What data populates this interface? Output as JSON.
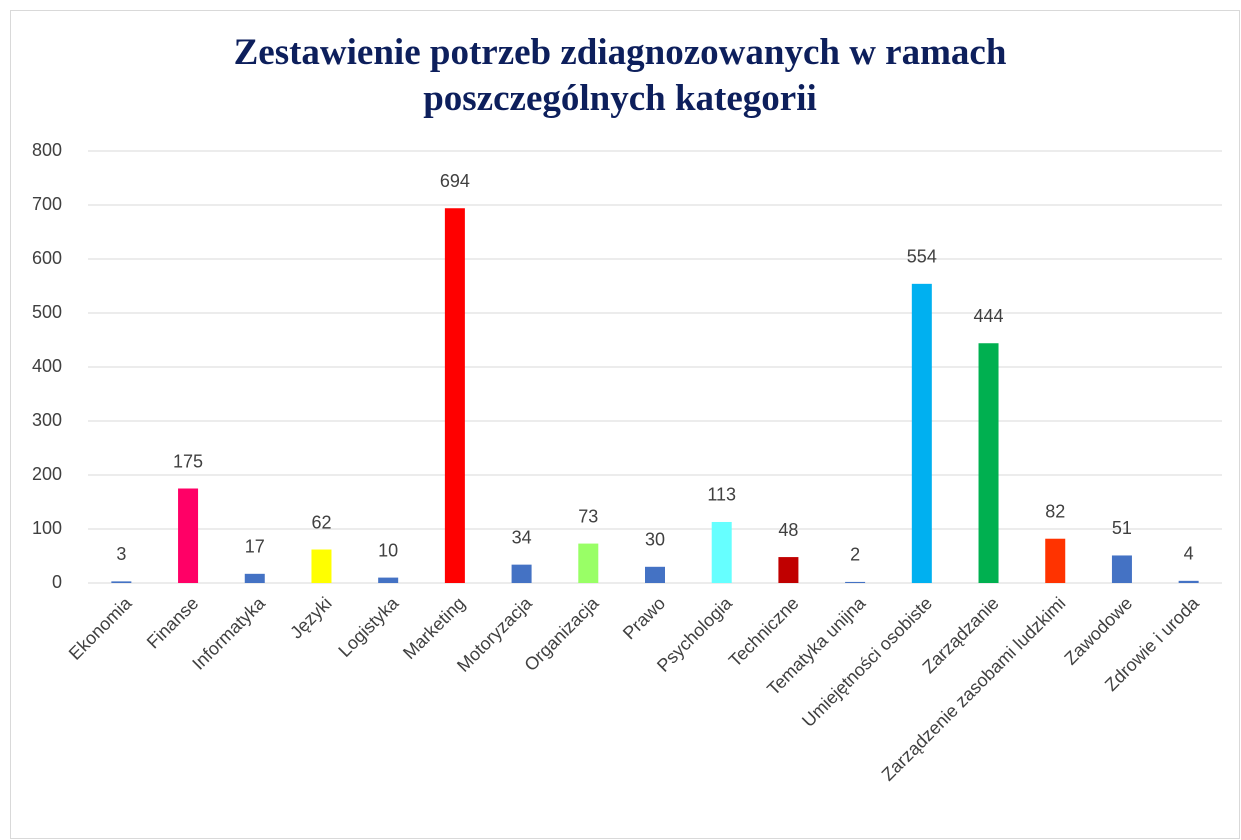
{
  "chart_data": {
    "type": "bar",
    "title": "Zestawienie potrzeb zdiagnozowanych w ramach poszczególnych kategorii",
    "categories": [
      "Ekonomia",
      "Finanse",
      "Informatyka",
      "Języki",
      "Logistyka",
      "Marketing",
      "Motoryzacja",
      "Organizacja",
      "Prawo",
      "Psychologia",
      "Techniczne",
      "Tematyka unijna",
      "Umiejętności osobiste",
      "Zarządzanie",
      "Zarządzenie zasobami ludzkimi",
      "Zawodowe",
      "Zdrowie i uroda"
    ],
    "values": [
      3,
      175,
      17,
      62,
      10,
      694,
      34,
      73,
      30,
      113,
      48,
      2,
      554,
      444,
      82,
      51,
      4
    ],
    "colors": [
      "#4472c4",
      "#ff0066",
      "#4472c4",
      "#ffff00",
      "#4472c4",
      "#ff0000",
      "#4472c4",
      "#99ff66",
      "#4472c4",
      "#66ffff",
      "#c00000",
      "#4472c4",
      "#00b0f0",
      "#00b050",
      "#ff3300",
      "#4472c4",
      "#4472c4"
    ],
    "ylim": [
      0,
      800
    ],
    "yticks": [
      0,
      100,
      200,
      300,
      400,
      500,
      600,
      700,
      800
    ],
    "grid": true,
    "data_labels": true
  }
}
